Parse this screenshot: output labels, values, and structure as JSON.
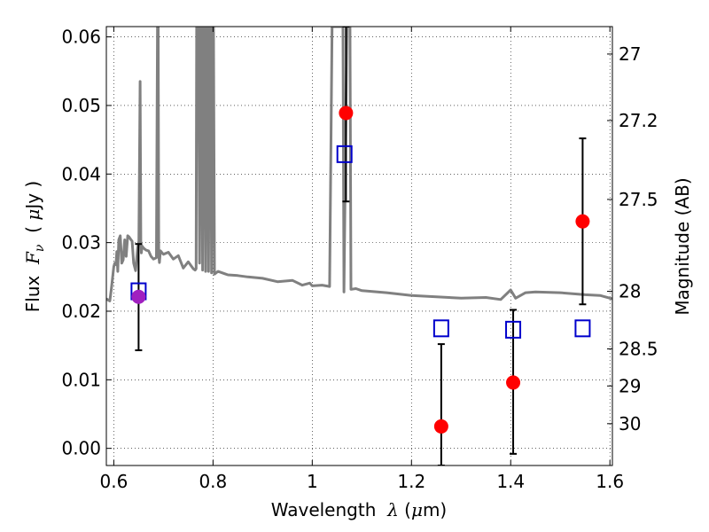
{
  "chart_data": {
    "type": "scatter",
    "xlabel": {
      "prefix": "Wavelength  ",
      "symbol": "λ",
      "unit_open": " (",
      "unit_mu": "μ",
      "unit_close": "m)"
    },
    "ylabel": {
      "prefix": "Flux  ",
      "symbol": "F",
      "subscript": "ν",
      "unit_open": "  ( ",
      "unit_mu": "μ",
      "unit_close": "Jy )"
    },
    "y2label": "Magnitude (AB)",
    "xlim": [
      0.585,
      1.605
    ],
    "ylim": [
      -0.0025,
      0.0615
    ],
    "grid": true,
    "x_ticks": [
      0.6,
      0.8,
      1.0,
      1.2,
      1.4,
      1.6
    ],
    "x_tick_labels": [
      "0.6",
      "0.8",
      "1",
      "1.2",
      "1.4",
      "1.6"
    ],
    "y_ticks": [
      0.0,
      0.01,
      0.02,
      0.03,
      0.04,
      0.05,
      0.06
    ],
    "y_tick_labels": [
      "0.00",
      "0.01",
      "0.02",
      "0.03",
      "0.04",
      "0.05",
      "0.06"
    ],
    "y2_ticks": [
      {
        "label": "27",
        "flux": 0.0575
      },
      {
        "label": "27.2",
        "flux": 0.0478
      },
      {
        "label": "27.5",
        "flux": 0.0363
      },
      {
        "label": "28",
        "flux": 0.0229
      },
      {
        "label": "28.5",
        "flux": 0.0145
      },
      {
        "label": "29",
        "flux": 0.0091
      },
      {
        "label": "30",
        "flux": 0.0036
      }
    ],
    "series": [
      {
        "name": "model spectrum",
        "kind": "line",
        "color": "#808080",
        "x": [
          0.585,
          0.592,
          0.595,
          0.6,
          0.602,
          0.6045,
          0.606,
          0.608,
          0.61,
          0.613,
          0.616,
          0.619,
          0.622,
          0.625,
          0.628,
          0.631,
          0.634,
          0.637,
          0.64,
          0.644,
          0.648,
          0.6505,
          0.653,
          0.6545,
          0.6555,
          0.657,
          0.66,
          0.665,
          0.67,
          0.675,
          0.68,
          0.686,
          0.688,
          0.6895,
          0.6905,
          0.692,
          0.694,
          0.7,
          0.71,
          0.72,
          0.73,
          0.74,
          0.75,
          0.76,
          0.764,
          0.766,
          0.767,
          0.771,
          0.773,
          0.775,
          0.777,
          0.779,
          0.781,
          0.783,
          0.785,
          0.787,
          0.789,
          0.791,
          0.793,
          0.795,
          0.797,
          0.799,
          0.801,
          0.803,
          0.81,
          0.83,
          0.85,
          0.87,
          0.9,
          0.93,
          0.96,
          0.98,
          0.995,
          1.0,
          1.02,
          1.035,
          1.04,
          1.045,
          1.048,
          1.05,
          1.06,
          1.062,
          1.064,
          1.07,
          1.076,
          1.078,
          1.08,
          1.088,
          1.1,
          1.15,
          1.2,
          1.25,
          1.3,
          1.35,
          1.38,
          1.4,
          1.41,
          1.43,
          1.45,
          1.5,
          1.55,
          1.58,
          1.605
        ],
        "y": [
          0.0218,
          0.0215,
          0.0232,
          0.0265,
          0.027,
          0.0268,
          0.0287,
          0.0258,
          0.0304,
          0.031,
          0.027,
          0.0275,
          0.0304,
          0.028,
          0.031,
          0.0308,
          0.0305,
          0.0302,
          0.027,
          0.0259,
          0.0292,
          0.0302,
          0.0535,
          0.0302,
          0.0285,
          0.0295,
          0.0292,
          0.0289,
          0.0288,
          0.028,
          0.0276,
          0.0278,
          0.0615,
          0.0615,
          0.0282,
          0.0271,
          0.0288,
          0.0283,
          0.0286,
          0.0276,
          0.0281,
          0.0263,
          0.0272,
          0.0262,
          0.026,
          0.0262,
          0.0615,
          0.0615,
          0.027,
          0.0615,
          0.0615,
          0.026,
          0.0615,
          0.0615,
          0.0258,
          0.0615,
          0.0615,
          0.0258,
          0.0615,
          0.0615,
          0.0256,
          0.0615,
          0.0615,
          0.0254,
          0.0258,
          0.0253,
          0.0252,
          0.025,
          0.0248,
          0.0243,
          0.0245,
          0.0238,
          0.0241,
          0.0237,
          0.0238,
          0.0236,
          0.0615,
          0.0615,
          0.0615,
          0.0615,
          0.0615,
          0.0615,
          0.0228,
          0.0615,
          0.0615,
          0.0232,
          0.0232,
          0.0233,
          0.023,
          0.0227,
          0.0223,
          0.0221,
          0.0219,
          0.022,
          0.0217,
          0.0231,
          0.0219,
          0.0227,
          0.0228,
          0.0227,
          0.0224,
          0.0223,
          0.0218
        ]
      },
      {
        "name": "model photometry",
        "kind": "open-square",
        "color": "#0000cc",
        "x": [
          0.65,
          1.065,
          1.26,
          1.405,
          1.545
        ],
        "y": [
          0.0229,
          0.0429,
          0.0175,
          0.0173,
          0.0175
        ]
      },
      {
        "name": "observed flux",
        "kind": "filled-circle",
        "colors": [
          "#a020c0",
          "#ff0000",
          "#ff0000",
          "#ff0000",
          "#ff0000"
        ],
        "x": [
          0.65,
          1.068,
          1.26,
          1.405,
          1.545
        ],
        "y": [
          0.0221,
          0.0489,
          0.0032,
          0.0096,
          0.0331
        ],
        "yerr_low": [
          0.0143,
          0.036,
          -0.0025,
          -0.0008,
          0.021
        ],
        "yerr_high": [
          0.0298,
          0.0615,
          0.0152,
          0.0202,
          0.0452
        ]
      }
    ]
  }
}
